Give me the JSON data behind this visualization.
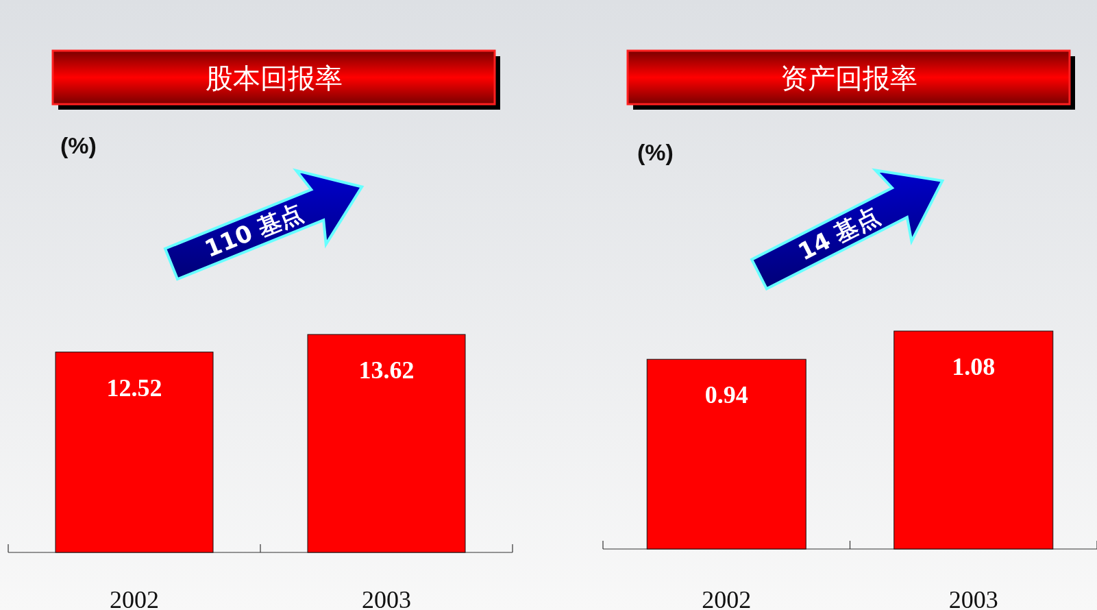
{
  "chart_data": [
    {
      "type": "bar",
      "title": "股本回报率",
      "ylabel": "(%)",
      "categories": [
        "2002",
        "2003"
      ],
      "values": [
        12.52,
        13.62
      ],
      "color": "#ff0000",
      "data_labels": true,
      "annotations": [
        "110 基点"
      ]
    },
    {
      "type": "bar",
      "title": "资产回报率",
      "ylabel": "(%)",
      "categories": [
        "2002",
        "2003"
      ],
      "values": [
        0.94,
        1.08
      ],
      "color": "#ff0000",
      "data_labels": true,
      "annotations": [
        "14 基点"
      ]
    }
  ]
}
